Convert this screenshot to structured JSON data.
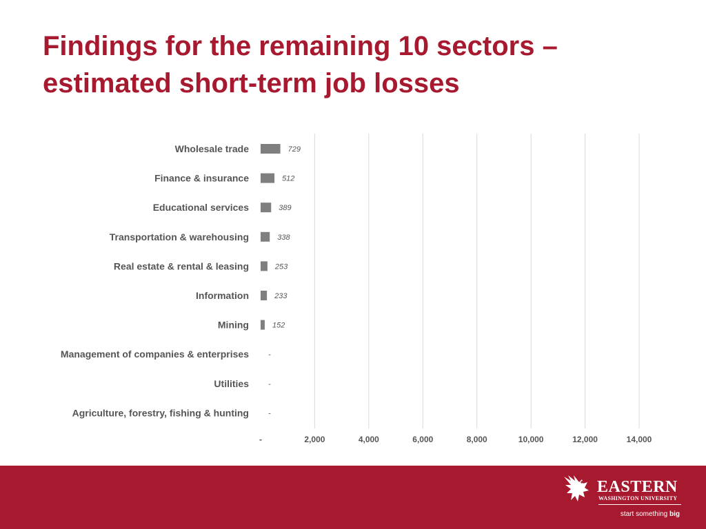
{
  "slide": {
    "title_line1": "Findings for the remaining 10 sectors –",
    "title_line2": "estimated short-term job losses"
  },
  "colors": {
    "title": "#a6192e",
    "bar": "#7f7f7f",
    "footer": "#a6192e"
  },
  "chart_data": {
    "type": "bar",
    "orientation": "horizontal",
    "title": "",
    "xlabel": "",
    "ylabel": "",
    "categories": [
      "Wholesale trade",
      "Finance & insurance",
      "Educational services",
      "Transportation & warehousing",
      "Real estate & rental & leasing",
      "Information",
      "Mining",
      "Management of companies & enterprises",
      "Utilities",
      "Agriculture, forestry, fishing & hunting"
    ],
    "values": [
      729,
      512,
      389,
      338,
      253,
      233,
      152,
      0,
      0,
      0
    ],
    "data_labels": [
      "729",
      "512",
      "389",
      "338",
      "253",
      "233",
      "152",
      "-",
      "-",
      "-"
    ],
    "xlim": [
      0,
      14000
    ],
    "ticks": [
      0,
      2000,
      4000,
      6000,
      8000,
      10000,
      12000,
      14000
    ],
    "tick_labels": [
      "-",
      "2,000",
      "4,000",
      "6,000",
      "8,000",
      "10,000",
      "12,000",
      "14,000"
    ],
    "grid": true,
    "legend": "none"
  },
  "footer": {
    "logo_name": "EASTERN",
    "logo_subtitle": "WASHINGTON UNIVERSITY",
    "tagline_regular": "start something",
    "tagline_bold": "big",
    "logo_icon": "eagle-icon"
  }
}
